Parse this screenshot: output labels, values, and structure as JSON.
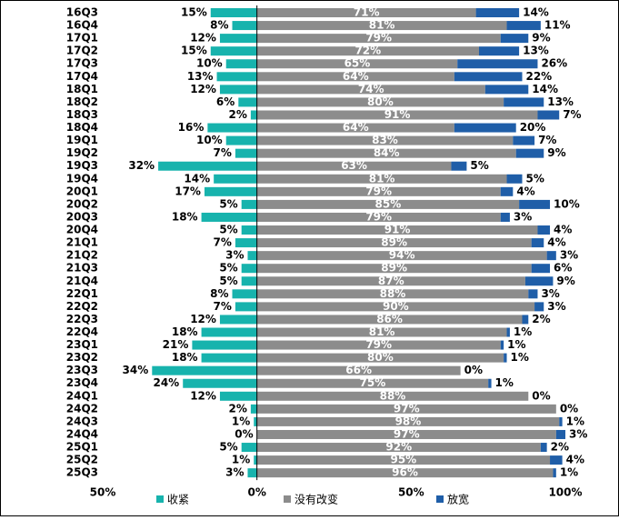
{
  "chart_data": {
    "type": "diverging-stacked-bar",
    "categories": [
      "16Q3",
      "16Q4",
      "17Q1",
      "17Q2",
      "17Q3",
      "17Q4",
      "18Q1",
      "18Q2",
      "18Q3",
      "18Q4",
      "19Q1",
      "19Q2",
      "19Q3",
      "19Q4",
      "20Q1",
      "20Q2",
      "20Q3",
      "20Q4",
      "21Q1",
      "21Q2",
      "21Q3",
      "21Q4",
      "22Q1",
      "22Q2",
      "22Q3",
      "22Q4",
      "23Q1",
      "23Q2",
      "23Q3",
      "23Q4",
      "24Q1",
      "24Q2",
      "24Q3",
      "24Q4",
      "25Q1",
      "25Q2",
      "25Q3"
    ],
    "series": [
      {
        "name": "收紧",
        "color": "#17b3ad",
        "direction": "left",
        "values": [
          15,
          8,
          12,
          15,
          10,
          13,
          12,
          6,
          2,
          16,
          10,
          7,
          32,
          14,
          17,
          5,
          18,
          5,
          7,
          3,
          5,
          5,
          8,
          7,
          12,
          18,
          21,
          18,
          34,
          24,
          12,
          2,
          1,
          0,
          5,
          1,
          3
        ],
        "value_labels": [
          "15%",
          "8%",
          "12%",
          "15%",
          "10%",
          "13%",
          "12%",
          "6%",
          "2%",
          "16%",
          "10%",
          "7%",
          "32%",
          "14%",
          "17%",
          "5%",
          "18%",
          "5%",
          "7%",
          "3%",
          "5%",
          "5%",
          "8%",
          "7%",
          "12%",
          "18%",
          "21%",
          "18%",
          "34%",
          "24%",
          "12%",
          "2%",
          "1%",
          "0%",
          "5%",
          "1%",
          "3%"
        ]
      },
      {
        "name": "没有改变",
        "color": "#8c8c8c",
        "direction": "right",
        "values": [
          71,
          81,
          79,
          72,
          65,
          64,
          74,
          80,
          91,
          64,
          83,
          84,
          63,
          81,
          79,
          85,
          79,
          91,
          89,
          94,
          89,
          87,
          88,
          90,
          86,
          81,
          79,
          80,
          66,
          75,
          88,
          97,
          98,
          97,
          92,
          95,
          96
        ],
        "value_labels": [
          "71%",
          "81%",
          "79%",
          "72%",
          "65%",
          "64%",
          "74%",
          "80%",
          "91%",
          "64%",
          "83%",
          "84%",
          "63%",
          "81%",
          "79%",
          "85%",
          "79%",
          "91%",
          "89%",
          "94%",
          "89%",
          "87%",
          "88%",
          "90%",
          "86%",
          "81%",
          "79%",
          "80%",
          "66%",
          "75%",
          "88%",
          "97%",
          "98%",
          "97%",
          "92%",
          "95%",
          "96%"
        ]
      },
      {
        "name": "放宽",
        "color": "#1f5ea8",
        "direction": "right",
        "values": [
          14,
          11,
          9,
          13,
          26,
          22,
          14,
          13,
          7,
          20,
          7,
          9,
          5,
          5,
          4,
          10,
          3,
          4,
          4,
          3,
          6,
          9,
          3,
          3,
          2,
          1,
          1,
          1,
          0,
          1,
          0,
          0,
          1,
          3,
          2,
          4,
          1
        ],
        "value_labels": [
          "14%",
          "11%",
          "9%",
          "13%",
          "26%",
          "22%",
          "14%",
          "13%",
          "7%",
          "20%",
          "7%",
          "9%",
          "5%",
          "5%",
          "4%",
          "10%",
          "3%",
          "4%",
          "4%",
          "3%",
          "6%",
          "9%",
          "3%",
          "3%",
          "2%",
          "1%",
          "1%",
          "1%",
          "0%",
          "1%",
          "0%",
          "0%",
          "1%",
          "3%",
          "2%",
          "4%",
          "1%"
        ]
      }
    ],
    "xlim": [
      -50,
      100
    ],
    "xticks": [
      {
        "value": -50,
        "label": "50%"
      },
      {
        "value": 0,
        "label": "0%"
      },
      {
        "value": 50,
        "label": "50%"
      },
      {
        "value": 100,
        "label": "100%"
      }
    ]
  }
}
